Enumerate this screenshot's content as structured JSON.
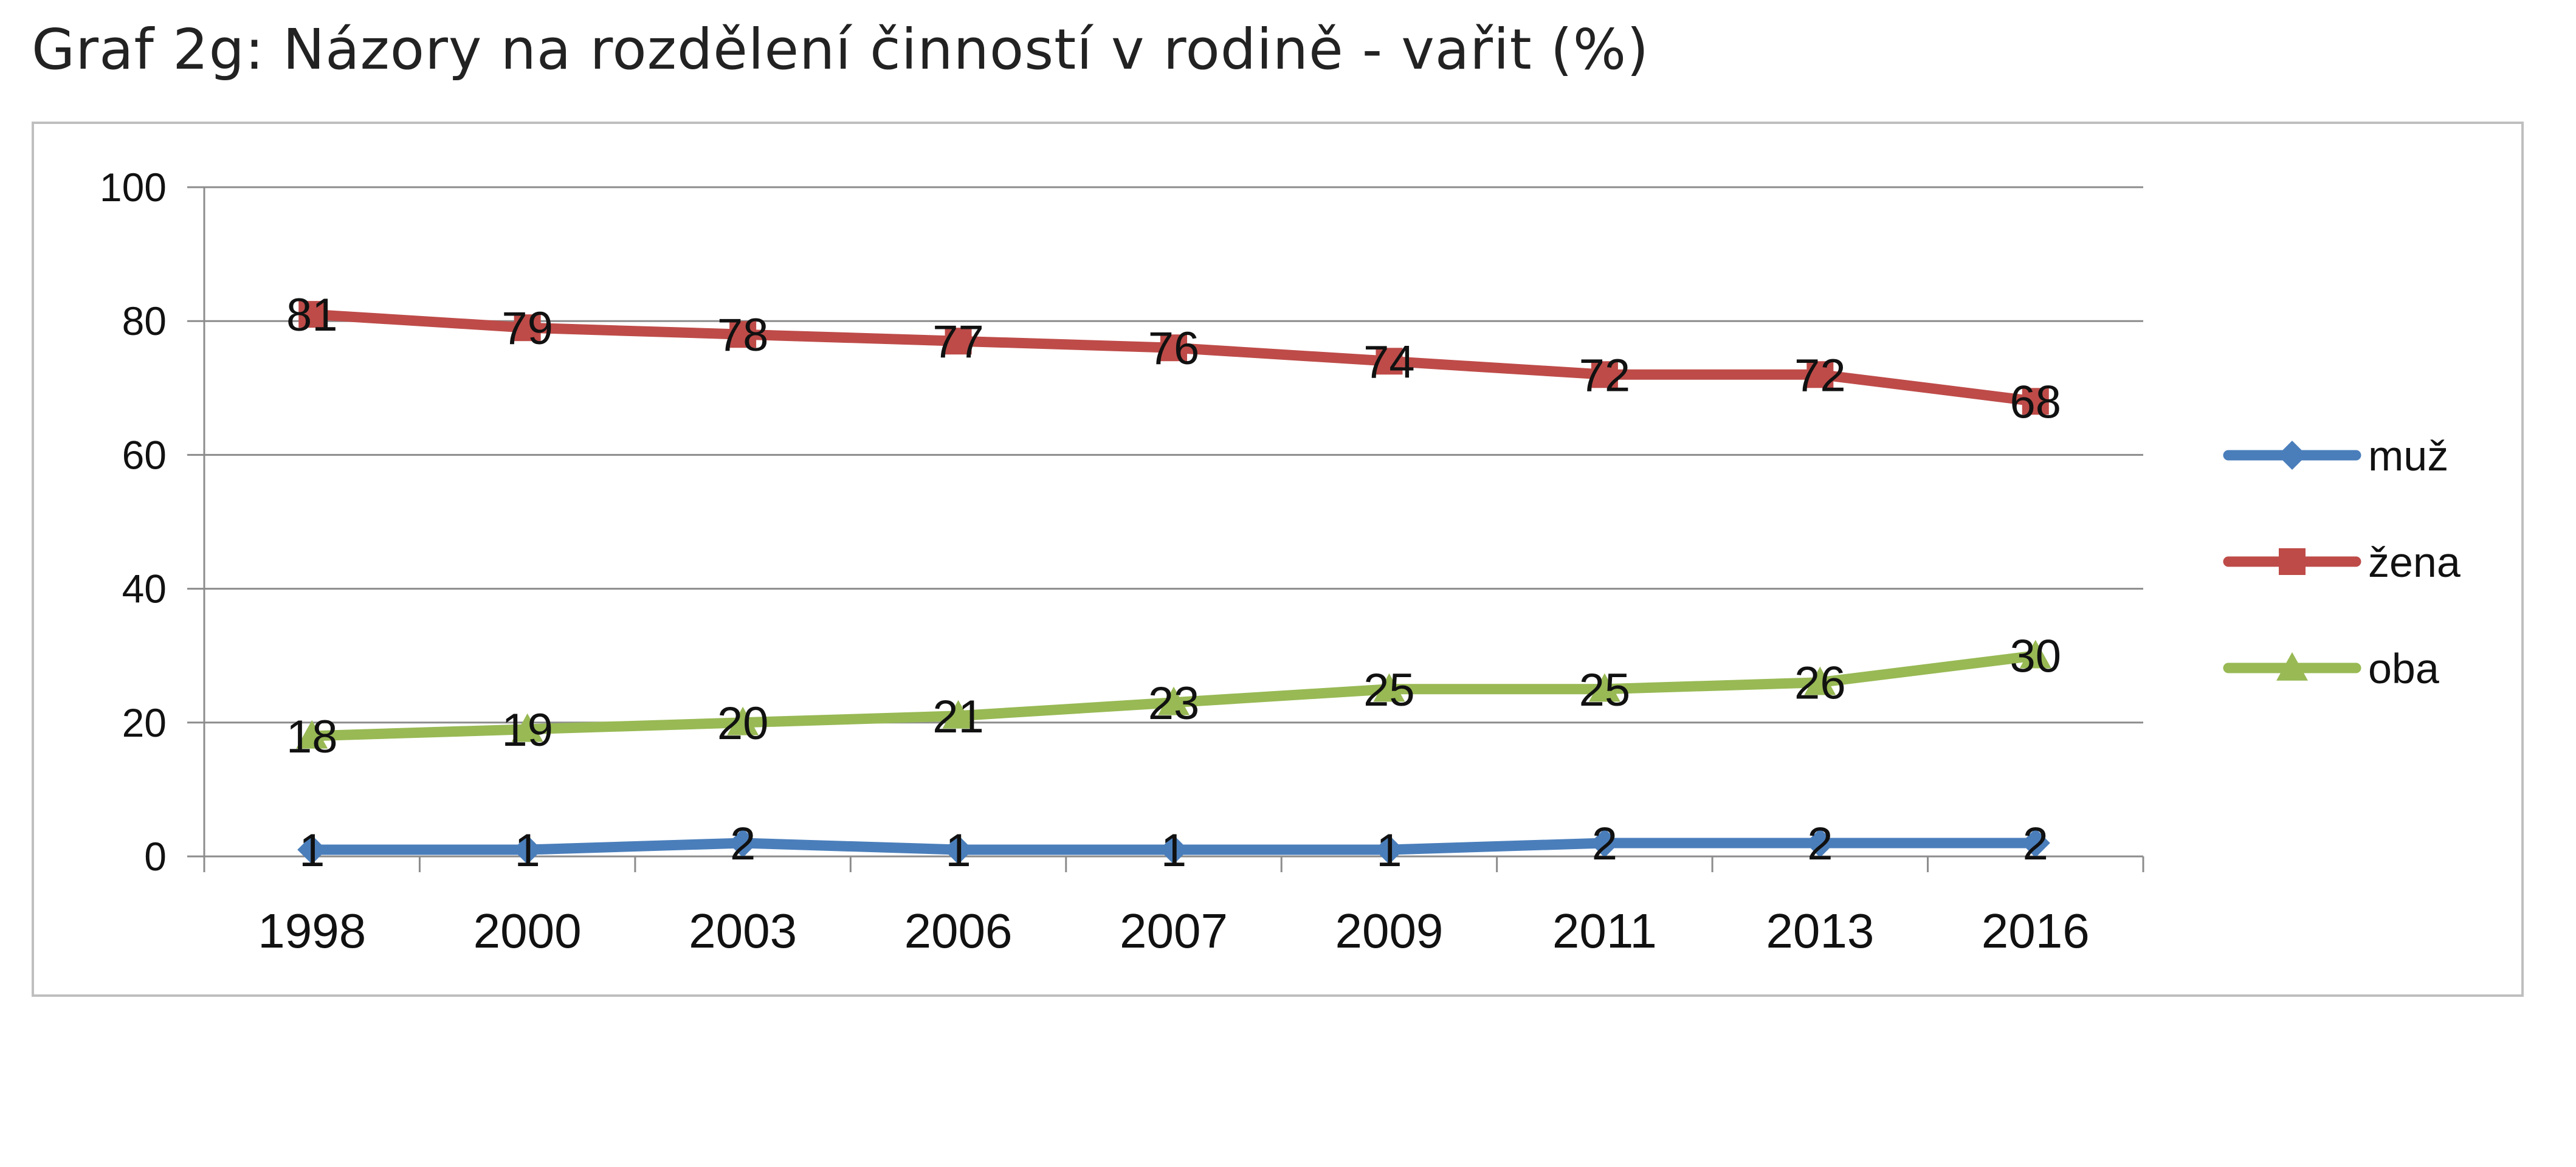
{
  "page": {
    "title": "Graf 2g: Názory na rozdělení činností v rodině - vařit (%)"
  },
  "chart_data": {
    "type": "line",
    "title": "Graf 2g: Názory na rozdělení činností v rodině - vařit (%)",
    "xlabel": "",
    "ylabel": "",
    "categories": [
      "1998",
      "2000",
      "2003",
      "2006",
      "2007",
      "2009",
      "2011",
      "2013",
      "2016"
    ],
    "ylim": [
      0,
      100
    ],
    "yticks": [
      0,
      20,
      40,
      60,
      80,
      100
    ],
    "grid": true,
    "legend_position": "right",
    "series": [
      {
        "name": "muž",
        "values": [
          1,
          1,
          2,
          1,
          1,
          1,
          2,
          2,
          2
        ],
        "color": "#4a7ebb",
        "marker": "diamond"
      },
      {
        "name": "žena",
        "values": [
          81,
          79,
          78,
          77,
          76,
          74,
          72,
          72,
          68
        ],
        "color": "#be4b48",
        "marker": "square"
      },
      {
        "name": "oba",
        "values": [
          18,
          19,
          20,
          21,
          23,
          25,
          25,
          26,
          30
        ],
        "color": "#98b954",
        "marker": "triangle"
      }
    ]
  }
}
